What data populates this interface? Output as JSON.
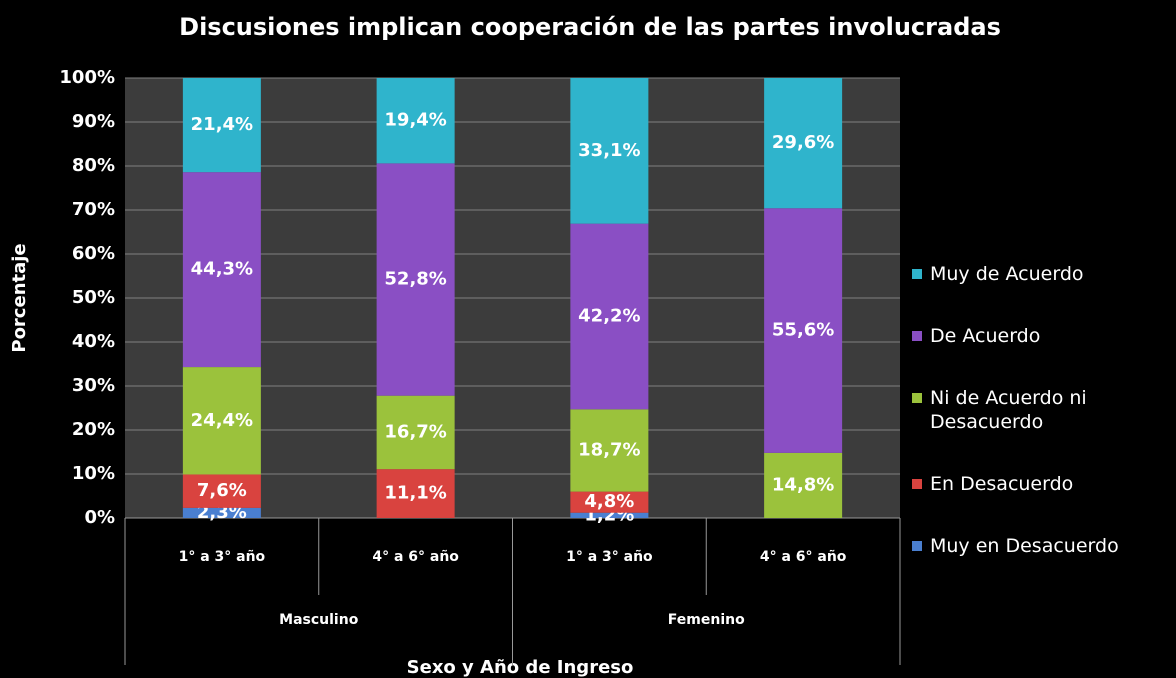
{
  "chart_data": {
    "type": "stacked_bar",
    "title": "Discusiones implican cooperación de las partes involucradas",
    "x_label": "Sexo y Año de Ingreso",
    "y_label": "Porcentaje",
    "categories": [
      "1° a 3° año",
      "4° a 6° año",
      "1° a 3° año",
      "4° a 6° año"
    ],
    "groups": [
      "Masculino",
      "Femenino"
    ],
    "ylim": [
      0,
      100
    ],
    "yticks": [
      {
        "value": 0,
        "label": "0%"
      },
      {
        "value": 10,
        "label": "10%"
      },
      {
        "value": 20,
        "label": "20%"
      },
      {
        "value": 30,
        "label": "30%"
      },
      {
        "value": 40,
        "label": "40%"
      },
      {
        "value": 50,
        "label": "50%"
      },
      {
        "value": 60,
        "label": "60%"
      },
      {
        "value": 70,
        "label": "70%"
      },
      {
        "value": 80,
        "label": "80%"
      },
      {
        "value": 90,
        "label": "90%"
      },
      {
        "value": 100,
        "label": "100%"
      }
    ],
    "grid": true,
    "legend": "right",
    "series": [
      {
        "name": "Muy en Desacuerdo",
        "color": "#4a7fd0",
        "values": [
          2.3,
          null,
          1.2,
          null
        ],
        "value_labels": [
          "2,3%",
          null,
          "1,2%",
          null
        ]
      },
      {
        "name": "En Desacuerdo",
        "color": "#d9433f",
        "values": [
          7.6,
          11.1,
          4.8,
          null
        ],
        "value_labels": [
          "7,6%",
          "11,1%",
          "4,8%",
          null
        ]
      },
      {
        "name": "Ni de Acuerdo ni Desacuerdo",
        "color": "#9bc23c",
        "values": [
          24.4,
          16.7,
          18.7,
          14.8
        ],
        "value_labels": [
          "24,4%",
          "16,7%",
          "18,7%",
          "14,8%"
        ]
      },
      {
        "name": "De Acuerdo",
        "color": "#8a4fc4",
        "values": [
          44.3,
          52.8,
          42.2,
          55.6
        ],
        "value_labels": [
          "44,3%",
          "52,8%",
          "42,2%",
          "55,6%"
        ]
      },
      {
        "name": "Muy de Acuerdo",
        "color": "#2fb4cc",
        "values": [
          21.4,
          19.4,
          33.1,
          29.6
        ],
        "value_labels": [
          "21,4%",
          "19,4%",
          "33,1%",
          "29,6%"
        ]
      }
    ]
  }
}
